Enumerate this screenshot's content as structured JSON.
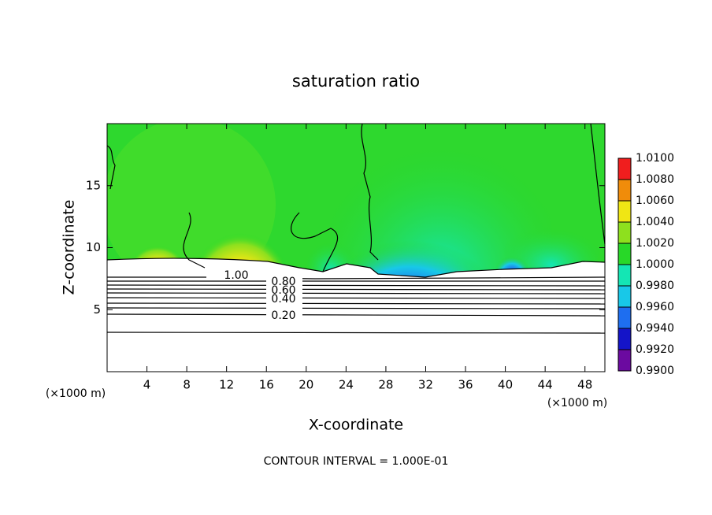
{
  "chart_data": {
    "type": "contour",
    "title": "saturation ratio",
    "x_label": "X-coordinate",
    "y_label": "Z-coordinate",
    "y_unit": "(×1000 m)",
    "x_unit": "(×1000 m)",
    "xlim": [
      0,
      50
    ],
    "xticks": [
      4,
      8,
      12,
      16,
      20,
      24,
      28,
      32,
      36,
      40,
      44,
      48
    ],
    "ylim": [
      0,
      20
    ],
    "yticks": [
      5,
      10,
      15
    ],
    "colorbar": {
      "lim": [
        0.99,
        1.01
      ],
      "ticks": [
        {
          "value": 0.99,
          "label": "0.9900"
        },
        {
          "value": 0.992,
          "label": "0.9920"
        },
        {
          "value": 0.994,
          "label": "0.9940"
        },
        {
          "value": 0.996,
          "label": "0.9960"
        },
        {
          "value": 0.998,
          "label": "0.9980"
        },
        {
          "value": 1.0,
          "label": "1.0000"
        },
        {
          "value": 1.002,
          "label": "1.0020"
        },
        {
          "value": 1.004,
          "label": "1.0040"
        },
        {
          "value": 1.006,
          "label": "1.0060"
        },
        {
          "value": 1.008,
          "label": "1.0080"
        },
        {
          "value": 1.01,
          "label": "1.0100"
        }
      ],
      "colors": [
        "#6b0aa0",
        "#1414c8",
        "#1e6ef0",
        "#18c8e8",
        "#14e6b4",
        "#28d828",
        "#8ee01e",
        "#f0e614",
        "#f08c0a",
        "#f01e1e"
      ]
    },
    "contour_levels": [
      {
        "value": 1.0,
        "label": "1.00"
      },
      {
        "value": 0.8,
        "label": "0.80"
      },
      {
        "value": 0.6,
        "label": "0.60"
      },
      {
        "value": 0.4,
        "label": "0.40"
      },
      {
        "value": 0.2,
        "label": "0.20"
      }
    ],
    "footnote": "CONTOUR INTERVAL = 1.000E-01"
  }
}
